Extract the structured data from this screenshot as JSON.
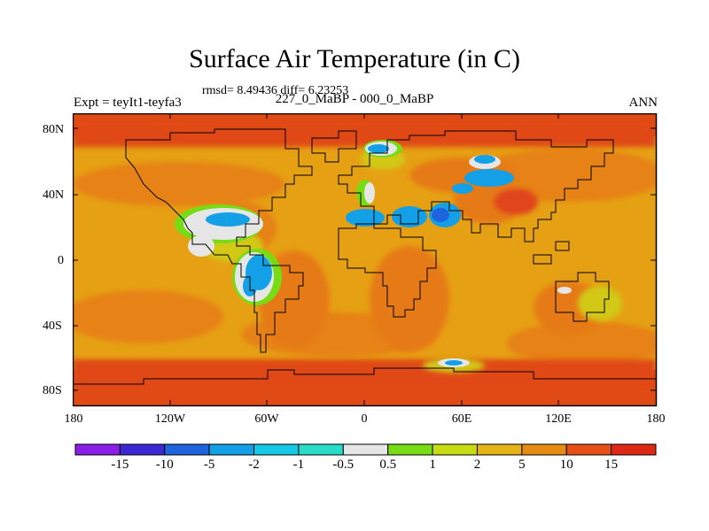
{
  "figure": {
    "title": "Surface Air Temperature (in C)",
    "stats": "rmsd= 8.49436 diff= 6.23253",
    "experiment": "Expt = teyIt1-teyfa3",
    "period": "227_0_MaBP - 000_0_MaBP",
    "season": "ANN"
  },
  "axes": {
    "lat_ticks": [
      "80N",
      "40N",
      "0",
      "40S",
      "80S"
    ],
    "lon_ticks": [
      "180",
      "120W",
      "60W",
      "0",
      "60E",
      "120E",
      "180"
    ]
  },
  "colorbar": {
    "labels": [
      "-15",
      "-10",
      "-5",
      "-2",
      "-1",
      "-0.5",
      "0.5",
      "1",
      "2",
      "5",
      "10",
      "15"
    ],
    "colors": [
      "#8b1ee6",
      "#3c28d2",
      "#1e64dc",
      "#14a0e6",
      "#14c8e6",
      "#28dcc8",
      "#e6e6e6",
      "#78dc14",
      "#c8dc14",
      "#e6b414",
      "#e68c14",
      "#e65014",
      "#dc2814"
    ]
  },
  "map_colors": {
    "ocean_warm": "#e6a014",
    "ocean_hot": "#e68214",
    "polar": "#e04a14",
    "land_mid": "#e67a14",
    "land_cool": "#d2c814",
    "land_cold": "#78dc14",
    "near_zero": "#e6e6e6",
    "cold": "#14a0e6",
    "colder": "#1e64dc"
  }
}
